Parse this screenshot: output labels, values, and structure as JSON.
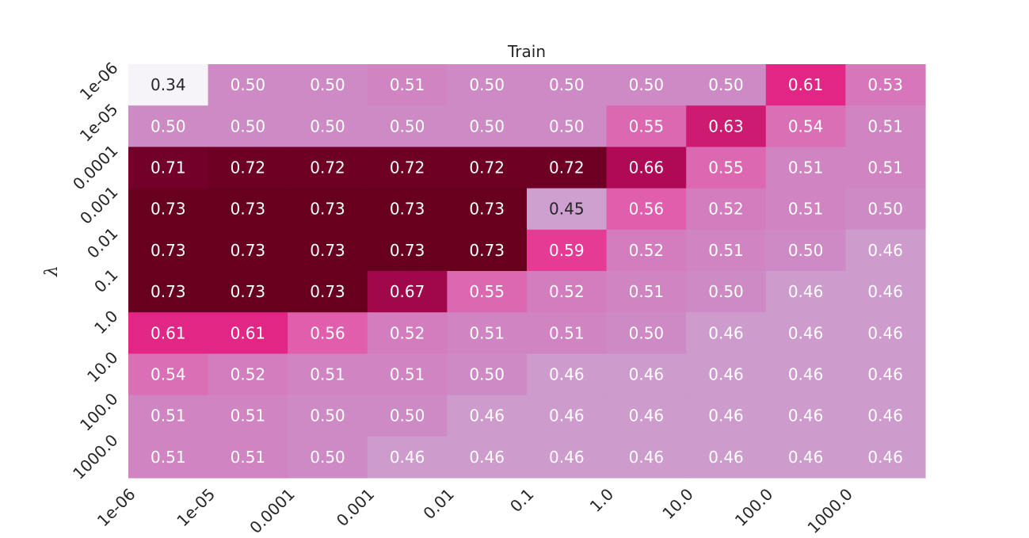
{
  "chart_data": {
    "type": "heatmap",
    "title": "Train",
    "xlabel": "",
    "ylabel": "λ",
    "x_ticks": [
      "1e-06",
      "1e-05",
      "0.0001",
      "0.001",
      "0.01",
      "0.1",
      "1.0",
      "10.0",
      "100.0",
      "1000.0"
    ],
    "y_ticks": [
      "1e-06",
      "1e-05",
      "0.0001",
      "0.001",
      "0.01",
      "0.1",
      "1.0",
      "10.0",
      "100.0",
      "1000.0"
    ],
    "values": [
      [
        0.34,
        0.5,
        0.5,
        0.51,
        0.5,
        0.5,
        0.5,
        0.5,
        0.61,
        0.53
      ],
      [
        0.5,
        0.5,
        0.5,
        0.5,
        0.5,
        0.5,
        0.55,
        0.63,
        0.54,
        0.51
      ],
      [
        0.71,
        0.72,
        0.72,
        0.72,
        0.72,
        0.72,
        0.66,
        0.55,
        0.51,
        0.51
      ],
      [
        0.73,
        0.73,
        0.73,
        0.73,
        0.73,
        0.45,
        0.56,
        0.52,
        0.51,
        0.5
      ],
      [
        0.73,
        0.73,
        0.73,
        0.73,
        0.73,
        0.59,
        0.52,
        0.51,
        0.5,
        0.46
      ],
      [
        0.73,
        0.73,
        0.73,
        0.67,
        0.55,
        0.52,
        0.51,
        0.5,
        0.46,
        0.46
      ],
      [
        0.61,
        0.61,
        0.56,
        0.52,
        0.51,
        0.51,
        0.5,
        0.46,
        0.46,
        0.46
      ],
      [
        0.54,
        0.52,
        0.51,
        0.51,
        0.5,
        0.46,
        0.46,
        0.46,
        0.46,
        0.46
      ],
      [
        0.51,
        0.51,
        0.5,
        0.5,
        0.46,
        0.46,
        0.46,
        0.46,
        0.46,
        0.46
      ],
      [
        0.51,
        0.51,
        0.5,
        0.46,
        0.46,
        0.46,
        0.46,
        0.46,
        0.46,
        0.46
      ]
    ],
    "colormap": "PuRd",
    "color_range": [
      0.34,
      0.73
    ],
    "grid": false,
    "legend": "none"
  }
}
